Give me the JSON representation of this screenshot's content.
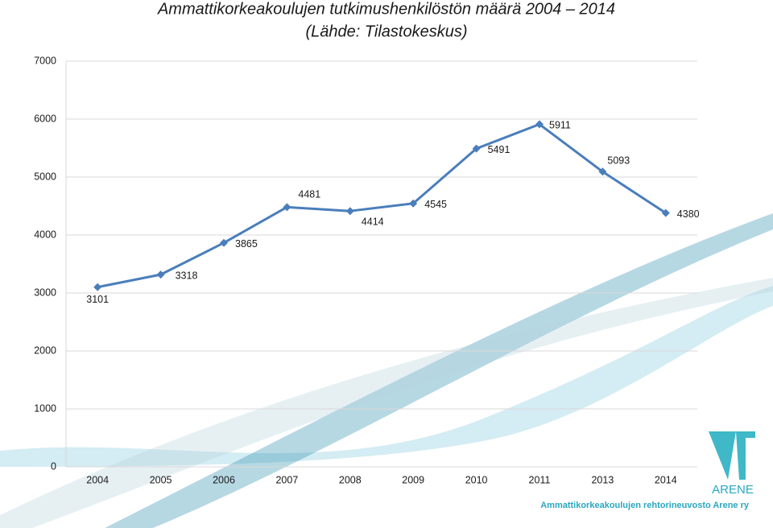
{
  "chart_data": {
    "type": "line",
    "title": "Ammattikorkeakoulujen tutkimushenkilöstön määrä 2004 – 2014",
    "subtitle": "(Lähde: Tilastokeskus)",
    "categories": [
      "2004",
      "2005",
      "2006",
      "2007",
      "2008",
      "2009",
      "2010",
      "2011",
      "2013",
      "2014"
    ],
    "values": [
      3101,
      3318,
      3865,
      4481,
      4414,
      4545,
      5491,
      5911,
      5093,
      4380
    ],
    "color": "#4a7ebb",
    "ylim": [
      0,
      7000
    ],
    "yticks": [
      0,
      1000,
      2000,
      3000,
      4000,
      5000,
      6000,
      7000
    ],
    "grid": true
  },
  "logo": {
    "name": "ARENE",
    "organization": "Ammattikorkeakoulujen rehtorineuvosto Arene ry"
  }
}
